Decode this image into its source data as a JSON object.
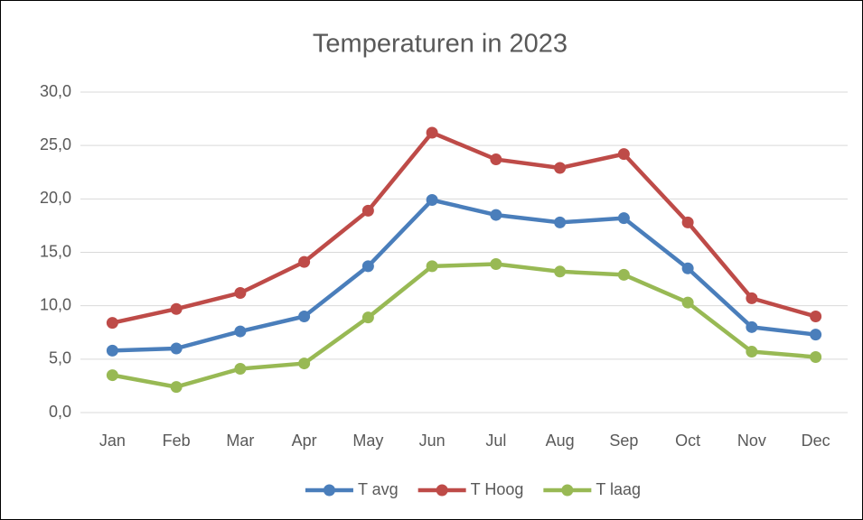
{
  "chart_data": {
    "type": "line",
    "title": "Temperaturen in 2023",
    "categories": [
      "Jan",
      "Feb",
      "Mar",
      "Apr",
      "May",
      "Jun",
      "Jul",
      "Aug",
      "Sep",
      "Oct",
      "Nov",
      "Dec"
    ],
    "series": [
      {
        "name": "T avg",
        "color": "#4a7ebb",
        "values": [
          5.8,
          6.0,
          7.6,
          9.0,
          13.7,
          19.9,
          18.5,
          17.8,
          18.2,
          13.5,
          8.0,
          7.3
        ]
      },
      {
        "name": "T Hoog",
        "color": "#be4b48",
        "values": [
          8.4,
          9.7,
          11.2,
          14.1,
          18.9,
          26.2,
          23.7,
          22.9,
          24.2,
          17.8,
          10.7,
          9.0
        ]
      },
      {
        "name": "T laag",
        "color": "#98b954",
        "values": [
          3.5,
          2.4,
          4.1,
          4.6,
          8.9,
          13.7,
          13.9,
          13.2,
          12.9,
          10.3,
          5.7,
          5.2
        ]
      }
    ],
    "ylim": [
      0,
      30
    ],
    "yticks": [
      {
        "value": 0,
        "label": "0,0"
      },
      {
        "value": 5,
        "label": "5,0"
      },
      {
        "value": 10,
        "label": "10,0"
      },
      {
        "value": 15,
        "label": "15,0"
      },
      {
        "value": 20,
        "label": "20,0"
      },
      {
        "value": 25,
        "label": "25,0"
      },
      {
        "value": 30,
        "label": "30,0"
      }
    ],
    "grid": true,
    "legend": "bottom"
  }
}
